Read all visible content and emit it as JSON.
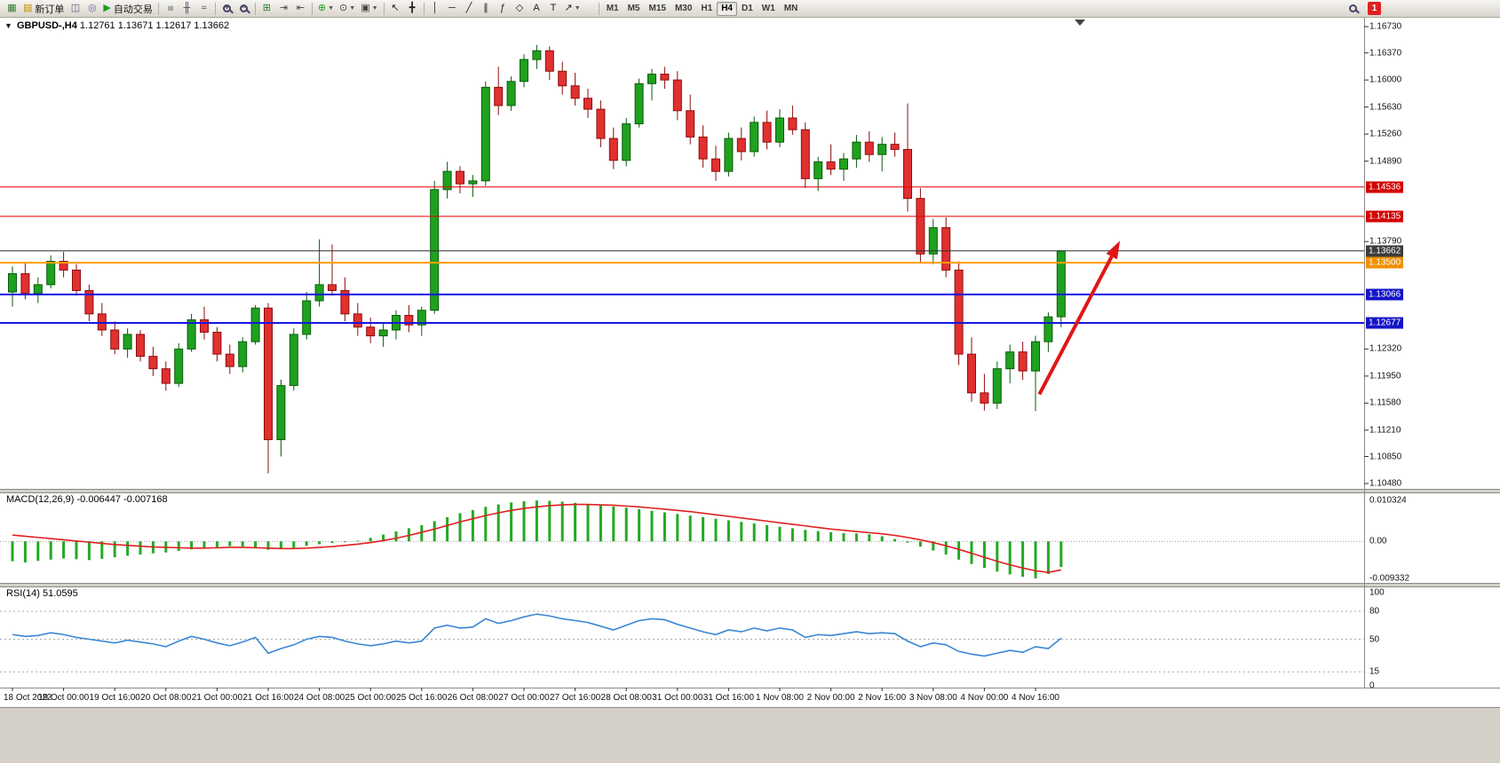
{
  "app": {
    "window_background": "#d4d0c8"
  },
  "toolbar": {
    "groups": [
      {
        "items": [
          {
            "name": "new-chart-button",
            "icon": "chart-plus-icon",
            "glyph": "▦",
            "color": "#2f7d2f"
          },
          {
            "name": "new-order-button",
            "icon": "new-order-icon",
            "glyph": "▤",
            "color": "#c08a00",
            "label": "新订单"
          },
          {
            "name": "chart-windows-button",
            "icon": "chart-window-icon",
            "glyph": "◫",
            "color": "#555577"
          },
          {
            "name": "profiles-button",
            "icon": "profiles-icon",
            "glyph": "◎",
            "color": "#7a5aa0"
          },
          {
            "name": "auto-trading-button",
            "icon": "play-icon",
            "glyph": "▶",
            "color": "#18a018",
            "label": "自动交易"
          }
        ]
      },
      {
        "items": [
          {
            "name": "bar-chart-mode-button",
            "icon": "bar-chart-icon",
            "glyph": "≡",
            "color": "#3a5a3a",
            "rot": true
          },
          {
            "name": "candlestick-mode-button",
            "icon": "candlestick-icon",
            "glyph": "╫",
            "color": "#3a3a5a"
          },
          {
            "name": "line-chart-mode-button",
            "icon": "line-chart-icon",
            "glyph": "≈",
            "color": "#3a5a3a"
          }
        ]
      },
      {
        "items": [
          {
            "name": "zoom-in-button",
            "icon": "zoom-in-icon",
            "glyph": "magnifier-plus"
          },
          {
            "name": "zoom-out-button",
            "icon": "zoom-out-icon",
            "glyph": "magnifier-minus"
          }
        ]
      },
      {
        "items": [
          {
            "name": "tile-windows-button",
            "icon": "tile-windows-icon",
            "glyph": "⊞",
            "color": "#2f7d2f"
          },
          {
            "name": "auto-scroll-button",
            "icon": "auto-scroll-icon",
            "glyph": "⇥",
            "color": "#444444"
          },
          {
            "name": "chart-shift-button",
            "icon": "chart-shift-icon",
            "glyph": "⇤",
            "color": "#444444"
          }
        ]
      },
      {
        "items": [
          {
            "name": "indicators-button",
            "icon": "indicators-icon",
            "glyph": "⊕",
            "color": "#18a018",
            "dropdown": true
          },
          {
            "name": "periods-button",
            "icon": "clock-icon",
            "glyph": "⊙",
            "color": "#444444",
            "dropdown": true
          },
          {
            "name": "templates-button",
            "icon": "template-icon",
            "glyph": "▣",
            "color": "#444444",
            "dropdown": true
          }
        ]
      },
      {
        "items": [
          {
            "name": "cursor-button",
            "icon": "cursor-icon",
            "glyph": "↖",
            "color": "#222222"
          },
          {
            "name": "crosshair-button",
            "icon": "crosshair-icon",
            "glyph": "╋",
            "color": "#222222"
          }
        ]
      },
      {
        "items": [
          {
            "name": "vertical-line-button",
            "icon": "vertical-line-icon",
            "glyph": "│",
            "color": "#222222"
          },
          {
            "name": "horizontal-line-button",
            "icon": "horizontal-line-icon",
            "glyph": "─",
            "color": "#222222"
          },
          {
            "name": "trendline-button",
            "icon": "trendline-icon",
            "glyph": "╱",
            "color": "#222222"
          },
          {
            "name": "channel-button",
            "icon": "channel-icon",
            "glyph": "∥",
            "color": "#222222"
          },
          {
            "name": "fibonacci-button",
            "icon": "fibonacci-icon",
            "glyph": "ƒ",
            "color": "#222222"
          },
          {
            "name": "shapes-button",
            "icon": "shapes-icon",
            "glyph": "◇",
            "color": "#222222"
          },
          {
            "name": "text-button",
            "icon": "text-icon",
            "glyph": "A",
            "color": "#222222"
          },
          {
            "name": "text-label-button",
            "icon": "text-label-icon",
            "glyph": "T",
            "color": "#222222"
          },
          {
            "name": "arrows-button",
            "icon": "arrow-objects-icon",
            "glyph": "↗",
            "color": "#222222",
            "dropdown": true
          }
        ]
      }
    ],
    "timeframes": [
      "M1",
      "M5",
      "M15",
      "M30",
      "H1",
      "H4",
      "D1",
      "W1",
      "MN"
    ],
    "active_timeframe": "H4",
    "notification_count": "1"
  },
  "chart": {
    "symbol_label": "GBPUSD-,H4",
    "ohlc": "1.12761 1.13671 1.12617 1.13662"
  },
  "indicators": {
    "macd": {
      "label": "MACD(12,26,9)",
      "values": "-0.006447 -0.007168"
    },
    "rsi": {
      "label": "RSI(14)",
      "value": "51.0595"
    }
  },
  "chart_data": {
    "type": "candlestick+indicators",
    "symbol": "GBPUSD",
    "timeframe": "H4",
    "bars_per_label": 4,
    "x_labels": [
      "18 Oct 2022",
      "19 Oct 00:00",
      "19 Oct 16:00",
      "20 Oct 08:00",
      "21 Oct 00:00",
      "21 Oct 16:00",
      "24 Oct 08:00",
      "25 Oct 00:00",
      "25 Oct 16:00",
      "26 Oct 08:00",
      "27 Oct 00:00",
      "27 Oct 16:00",
      "28 Oct 08:00",
      "31 Oct 00:00",
      "31 Oct 16:00",
      "1 Nov 08:00",
      "2 Nov 00:00",
      "2 Nov 16:00",
      "3 Nov 08:00",
      "4 Nov 00:00",
      "4 Nov 16:00"
    ],
    "y_axis": {
      "labels": [
        "1.16730",
        "1.16370",
        "1.16000",
        "1.15630",
        "1.15260",
        "1.14890",
        "1.13790",
        "1.12320",
        "1.11950",
        "1.11580",
        "1.11210",
        "1.10850",
        "1.10480"
      ],
      "range": [
        1.1048,
        1.1673
      ]
    },
    "last_candle_ohlc": {
      "open": 1.12761,
      "high": 1.13671,
      "low": 1.12617,
      "close": 1.13662
    },
    "colors": {
      "bull": "#1fa11f",
      "bull_border": "#0a5c0a",
      "bear": "#e03030",
      "bear_border": "#8f0e0e",
      "background": "#ffffff",
      "border": "#8a8a8a"
    },
    "candles_ohlc": [
      [
        1.131,
        1.1345,
        1.129,
        1.1335
      ],
      [
        1.1335,
        1.135,
        1.13,
        1.1308
      ],
      [
        1.1308,
        1.133,
        1.1295,
        1.132
      ],
      [
        1.132,
        1.136,
        1.1315,
        1.1352
      ],
      [
        1.1352,
        1.1365,
        1.133,
        1.134
      ],
      [
        1.134,
        1.1348,
        1.1305,
        1.1312
      ],
      [
        1.1312,
        1.132,
        1.127,
        1.128
      ],
      [
        1.128,
        1.1295,
        1.125,
        1.1258
      ],
      [
        1.1258,
        1.127,
        1.1225,
        1.1232
      ],
      [
        1.1232,
        1.126,
        1.122,
        1.1252
      ],
      [
        1.1252,
        1.1258,
        1.1215,
        1.1222
      ],
      [
        1.1222,
        1.1235,
        1.1195,
        1.1205
      ],
      [
        1.1205,
        1.1215,
        1.1175,
        1.1185
      ],
      [
        1.1185,
        1.124,
        1.118,
        1.1232
      ],
      [
        1.1232,
        1.128,
        1.1228,
        1.1272
      ],
      [
        1.1272,
        1.129,
        1.1245,
        1.1255
      ],
      [
        1.1255,
        1.1262,
        1.1215,
        1.1225
      ],
      [
        1.1225,
        1.1238,
        1.1198,
        1.1208
      ],
      [
        1.1208,
        1.1248,
        1.12,
        1.1242
      ],
      [
        1.1242,
        1.1292,
        1.1238,
        1.1288
      ],
      [
        1.1288,
        1.1295,
        1.1062,
        1.1108
      ],
      [
        1.1108,
        1.119,
        1.1085,
        1.1182
      ],
      [
        1.1182,
        1.126,
        1.1175,
        1.1252
      ],
      [
        1.1252,
        1.131,
        1.1245,
        1.1298
      ],
      [
        1.1298,
        1.1382,
        1.129,
        1.132
      ],
      [
        1.132,
        1.1375,
        1.1305,
        1.1312
      ],
      [
        1.1312,
        1.133,
        1.127,
        1.128
      ],
      [
        1.128,
        1.1295,
        1.125,
        1.1262
      ],
      [
        1.1262,
        1.1275,
        1.124,
        1.125
      ],
      [
        1.125,
        1.1268,
        1.1235,
        1.1258
      ],
      [
        1.1258,
        1.1285,
        1.1245,
        1.1278
      ],
      [
        1.1278,
        1.1292,
        1.1255,
        1.1265
      ],
      [
        1.1265,
        1.129,
        1.125,
        1.1285
      ],
      [
        1.1285,
        1.1462,
        1.128,
        1.145
      ],
      [
        1.145,
        1.1488,
        1.1438,
        1.1475
      ],
      [
        1.1475,
        1.1482,
        1.1445,
        1.1458
      ],
      [
        1.1458,
        1.147,
        1.144,
        1.1462
      ],
      [
        1.1462,
        1.1598,
        1.1455,
        1.159
      ],
      [
        1.159,
        1.1618,
        1.1552,
        1.1565
      ],
      [
        1.1565,
        1.1605,
        1.1558,
        1.1598
      ],
      [
        1.1598,
        1.1635,
        1.159,
        1.1628
      ],
      [
        1.1628,
        1.1648,
        1.1615,
        1.164
      ],
      [
        1.164,
        1.1646,
        1.16,
        1.1612
      ],
      [
        1.1612,
        1.1625,
        1.158,
        1.1592
      ],
      [
        1.1592,
        1.161,
        1.1565,
        1.1575
      ],
      [
        1.1575,
        1.1588,
        1.1548,
        1.156
      ],
      [
        1.156,
        1.1572,
        1.1508,
        1.152
      ],
      [
        1.152,
        1.1535,
        1.1478,
        1.149
      ],
      [
        1.149,
        1.1548,
        1.1482,
        1.154
      ],
      [
        1.154,
        1.1602,
        1.1535,
        1.1595
      ],
      [
        1.1595,
        1.1615,
        1.1572,
        1.1608
      ],
      [
        1.1608,
        1.1618,
        1.1588,
        1.16
      ],
      [
        1.16,
        1.1612,
        1.1545,
        1.1558
      ],
      [
        1.1558,
        1.158,
        1.1512,
        1.1522
      ],
      [
        1.1522,
        1.1538,
        1.148,
        1.1492
      ],
      [
        1.1492,
        1.151,
        1.1462,
        1.1475
      ],
      [
        1.1475,
        1.1528,
        1.1468,
        1.152
      ],
      [
        1.152,
        1.1535,
        1.149,
        1.1502
      ],
      [
        1.1502,
        1.155,
        1.1495,
        1.1542
      ],
      [
        1.1542,
        1.1558,
        1.1505,
        1.1515
      ],
      [
        1.1515,
        1.156,
        1.1508,
        1.1548
      ],
      [
        1.1548,
        1.1565,
        1.1525,
        1.1532
      ],
      [
        1.1532,
        1.1542,
        1.1452,
        1.1465
      ],
      [
        1.1465,
        1.1495,
        1.1448,
        1.1488
      ],
      [
        1.1488,
        1.1512,
        1.147,
        1.1478
      ],
      [
        1.1478,
        1.15,
        1.1462,
        1.1492
      ],
      [
        1.1492,
        1.1525,
        1.148,
        1.1515
      ],
      [
        1.1515,
        1.153,
        1.1488,
        1.1498
      ],
      [
        1.1498,
        1.1522,
        1.1475,
        1.1512
      ],
      [
        1.1512,
        1.1528,
        1.1495,
        1.1505
      ],
      [
        1.1505,
        1.1568,
        1.142,
        1.1438
      ],
      [
        1.1438,
        1.1452,
        1.135,
        1.1362
      ],
      [
        1.1362,
        1.141,
        1.1348,
        1.1398
      ],
      [
        1.1398,
        1.1412,
        1.133,
        1.134
      ],
      [
        1.134,
        1.1352,
        1.121,
        1.1225
      ],
      [
        1.1225,
        1.1248,
        1.116,
        1.1172
      ],
      [
        1.1172,
        1.1198,
        1.1148,
        1.1158
      ],
      [
        1.1158,
        1.1215,
        1.115,
        1.1205
      ],
      [
        1.1205,
        1.1238,
        1.1185,
        1.1228
      ],
      [
        1.1228,
        1.1242,
        1.119,
        1.1202
      ],
      [
        1.1202,
        1.125,
        1.1147,
        1.1242
      ],
      [
        1.1242,
        1.1282,
        1.1228,
        1.1276
      ],
      [
        1.12761,
        1.13671,
        1.12617,
        1.13662
      ]
    ],
    "hlines": [
      {
        "price": 1.14536,
        "color": "#e00000",
        "width": 1,
        "label": "1.14536",
        "label_bg": "#d40000"
      },
      {
        "price": 1.14135,
        "color": "#e00000",
        "width": 1,
        "label": "1.14135",
        "label_bg": "#d40000"
      },
      {
        "price": 1.13662,
        "color": "#2e2e2e",
        "width": 1,
        "label": "1.13662",
        "label_bg": "#3c3c3c"
      },
      {
        "price": 1.135,
        "color": "#ff9c00",
        "width": 2,
        "label": "1.13500",
        "label_bg": "#f09000"
      },
      {
        "price": 1.13066,
        "color": "#1616e0",
        "width": 2,
        "label": "1.13066",
        "label_bg": "#1414c8"
      },
      {
        "price": 1.12677,
        "color": "#1616e0",
        "width": 2,
        "label": "1.12677",
        "label_bg": "#1414c8"
      }
    ],
    "arrow_annotation": {
      "from_bar": 80.3,
      "from_price": 1.117,
      "to_bar": 86.6,
      "to_price": 1.138,
      "color": "#e01616",
      "width": 4
    },
    "macd": {
      "type": "bar+line",
      "axis_labels": [
        "0.010324",
        "0.00",
        "-0.009332"
      ],
      "range": [
        -0.009332,
        0.010324
      ],
      "histogram_color": "#22aa22",
      "signal_color": "#e02020",
      "histogram": [
        -0.005,
        -0.0053,
        -0.0049,
        -0.0046,
        -0.0043,
        -0.0045,
        -0.0047,
        -0.0044,
        -0.004,
        -0.0036,
        -0.0033,
        -0.003,
        -0.0028,
        -0.0024,
        -0.002,
        -0.0017,
        -0.0014,
        -0.0012,
        -0.0013,
        -0.0016,
        -0.0021,
        -0.0019,
        -0.0016,
        -0.0011,
        -0.0007,
        -0.0004,
        -0.0002,
        0.0002,
        0.0009,
        0.0017,
        0.0025,
        0.0033,
        0.0041,
        0.0051,
        0.0061,
        0.0071,
        0.0079,
        0.0087,
        0.0093,
        0.0098,
        0.0101,
        0.0103,
        0.0102,
        0.01,
        0.0097,
        0.0094,
        0.0091,
        0.0088,
        0.0085,
        0.0081,
        0.0077,
        0.0073,
        0.0069,
        0.0065,
        0.0061,
        0.0057,
        0.0053,
        0.0049,
        0.0045,
        0.0041,
        0.0037,
        0.0033,
        0.0029,
        0.0026,
        0.0023,
        0.0021,
        0.002,
        0.0018,
        0.0013,
        0.0006,
        -0.0003,
        -0.0013,
        -0.0023,
        -0.0033,
        -0.0046,
        -0.0057,
        -0.0067,
        -0.0076,
        -0.0083,
        -0.0089,
        -0.0093,
        -0.0082,
        -0.006447
      ],
      "signal": [
        0.0016,
        0.0013,
        0.001,
        0.0007,
        0.0004,
        0.0001,
        -0.0002,
        -0.0005,
        -0.0008,
        -0.001,
        -0.0012,
        -0.0014,
        -0.0015,
        -0.0016,
        -0.0017,
        -0.0017,
        -0.0016,
        -0.0015,
        -0.0015,
        -0.0016,
        -0.0017,
        -0.0018,
        -0.0018,
        -0.0017,
        -0.0015,
        -0.0013,
        -0.001,
        -0.0007,
        -0.0003,
        0.0002,
        0.0008,
        0.0015,
        0.0023,
        0.0031,
        0.004,
        0.0049,
        0.0057,
        0.0065,
        0.0072,
        0.0078,
        0.0083,
        0.0087,
        0.009,
        0.0092,
        0.0093,
        0.0093,
        0.0092,
        0.0091,
        0.0089,
        0.0087,
        0.0084,
        0.0081,
        0.0078,
        0.0075,
        0.0071,
        0.0067,
        0.0063,
        0.0059,
        0.0055,
        0.0051,
        0.0047,
        0.0043,
        0.0039,
        0.0035,
        0.0031,
        0.0028,
        0.0025,
        0.0022,
        0.0019,
        0.0015,
        0.001,
        0.0004,
        -0.0003,
        -0.0011,
        -0.002,
        -0.003,
        -0.004,
        -0.005,
        -0.0059,
        -0.0067,
        -0.0074,
        -0.0078,
        -0.007168
      ]
    },
    "rsi": {
      "type": "line",
      "axis_labels": [
        "100",
        "80",
        "50",
        "15",
        "0"
      ],
      "levels": [
        80,
        50,
        15
      ],
      "range": [
        0,
        100
      ],
      "line_color": "#3a86d4",
      "values": [
        55,
        53,
        54,
        57,
        55,
        52,
        50,
        48,
        46,
        49,
        47,
        45,
        42,
        48,
        53,
        50,
        46,
        43,
        47,
        52,
        35,
        40,
        44,
        50,
        53,
        52,
        48,
        45,
        43,
        45,
        48,
        46,
        48,
        62,
        65,
        62,
        63,
        72,
        67,
        70,
        74,
        77,
        75,
        72,
        70,
        68,
        64,
        60,
        65,
        70,
        72,
        71,
        66,
        62,
        58,
        55,
        60,
        58,
        62,
        59,
        62,
        60,
        52,
        55,
        54,
        56,
        58,
        56,
        57,
        56,
        48,
        42,
        46,
        44,
        37,
        34,
        32,
        35,
        38,
        36,
        42,
        40,
        51.0595
      ]
    }
  }
}
